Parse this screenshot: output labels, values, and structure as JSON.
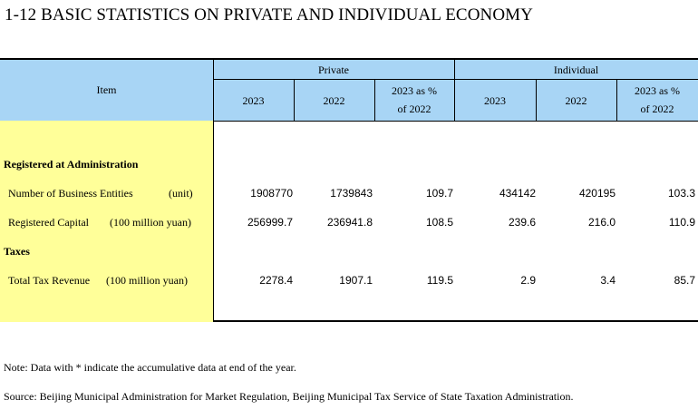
{
  "title": "1-12  BASIC STATISTICS ON PRIVATE AND INDIVIDUAL ECONOMY",
  "header": {
    "item": "Item",
    "private": "Private",
    "individual": "Individual",
    "y2023": "2023",
    "y2022": "2022",
    "pct_line1": "2023 as %",
    "pct_line2": "of 2022"
  },
  "rows": [
    {
      "label": "Registered at Administration",
      "bold": true
    },
    {
      "label": "Number of Business Entities",
      "unit": "(unit)",
      "values": [
        "1908770",
        "1739843",
        "109.7",
        "434142",
        "420195",
        "103.3"
      ]
    },
    {
      "label": "Registered Capital",
      "unit": "(100 million yuan)",
      "values": [
        "256999.7",
        "236941.8",
        "108.5",
        "239.6",
        "216.0",
        "110.9"
      ]
    },
    {
      "label": "Taxes",
      "bold": true
    },
    {
      "label": "Total Tax Revenue",
      "unit": "(100 million yuan)",
      "values": [
        "2278.4",
        "1907.1",
        "119.5",
        "2.9",
        "3.4",
        "85.7"
      ]
    }
  ],
  "notes": {
    "note": "Note: Data with * indicate the accumulative data at end of the year.",
    "source": "Source: Beijing Municipal Administration for Market Regulation, Beijing Municipal Tax Service of State Taxation Administration."
  }
}
